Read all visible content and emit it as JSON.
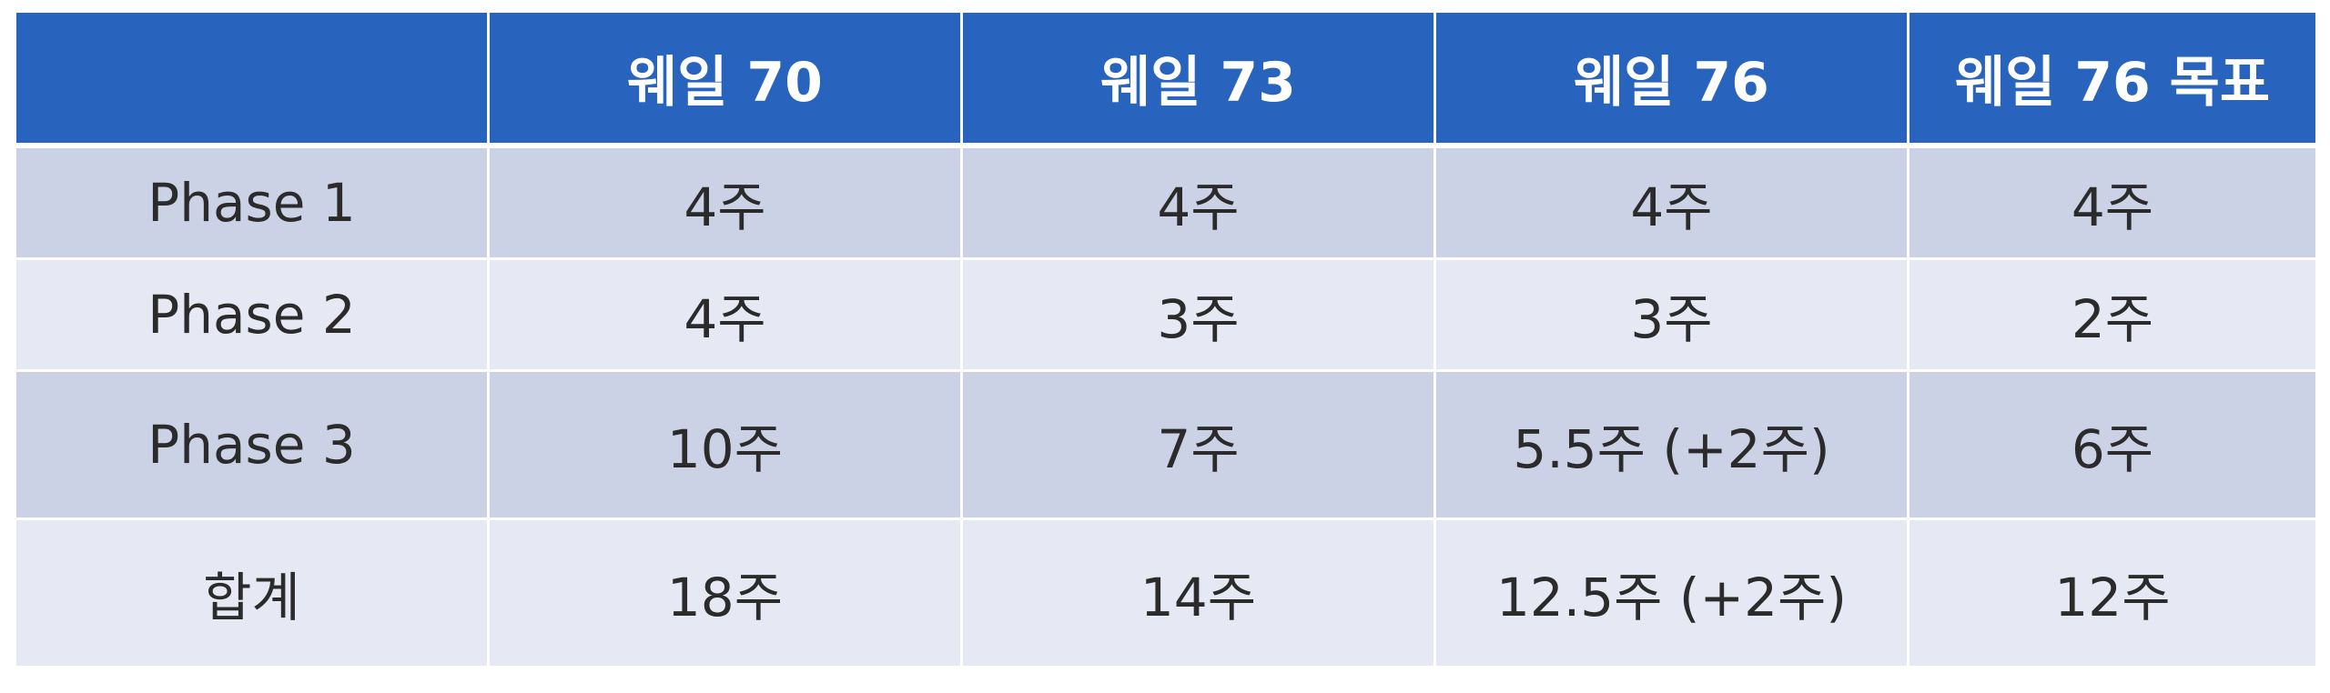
{
  "table": {
    "header": [
      "",
      "웨일 70",
      "웨일 73",
      "웨일 76",
      "웨일 76 목표"
    ],
    "rows": [
      {
        "label": "Phase 1",
        "cells": [
          "4주",
          "4주",
          "4주",
          "4주"
        ]
      },
      {
        "label": "Phase 2",
        "cells": [
          "4주",
          "3주",
          "3주",
          "2주"
        ]
      },
      {
        "label": "Phase 3",
        "cells": [
          "10주",
          "7주",
          "5.5주 (+2주)",
          "6주"
        ]
      },
      {
        "label": "합계",
        "cells": [
          "18주",
          "14주",
          "12.5주 (+2주)",
          "12주"
        ]
      }
    ]
  },
  "colors": {
    "header_bg": "#2864BE",
    "row_odd_bg": "#CBD2E6",
    "row_even_bg": "#E6E9F3",
    "header_text": "#FFFFFF",
    "body_text": "#2B2B2B"
  }
}
